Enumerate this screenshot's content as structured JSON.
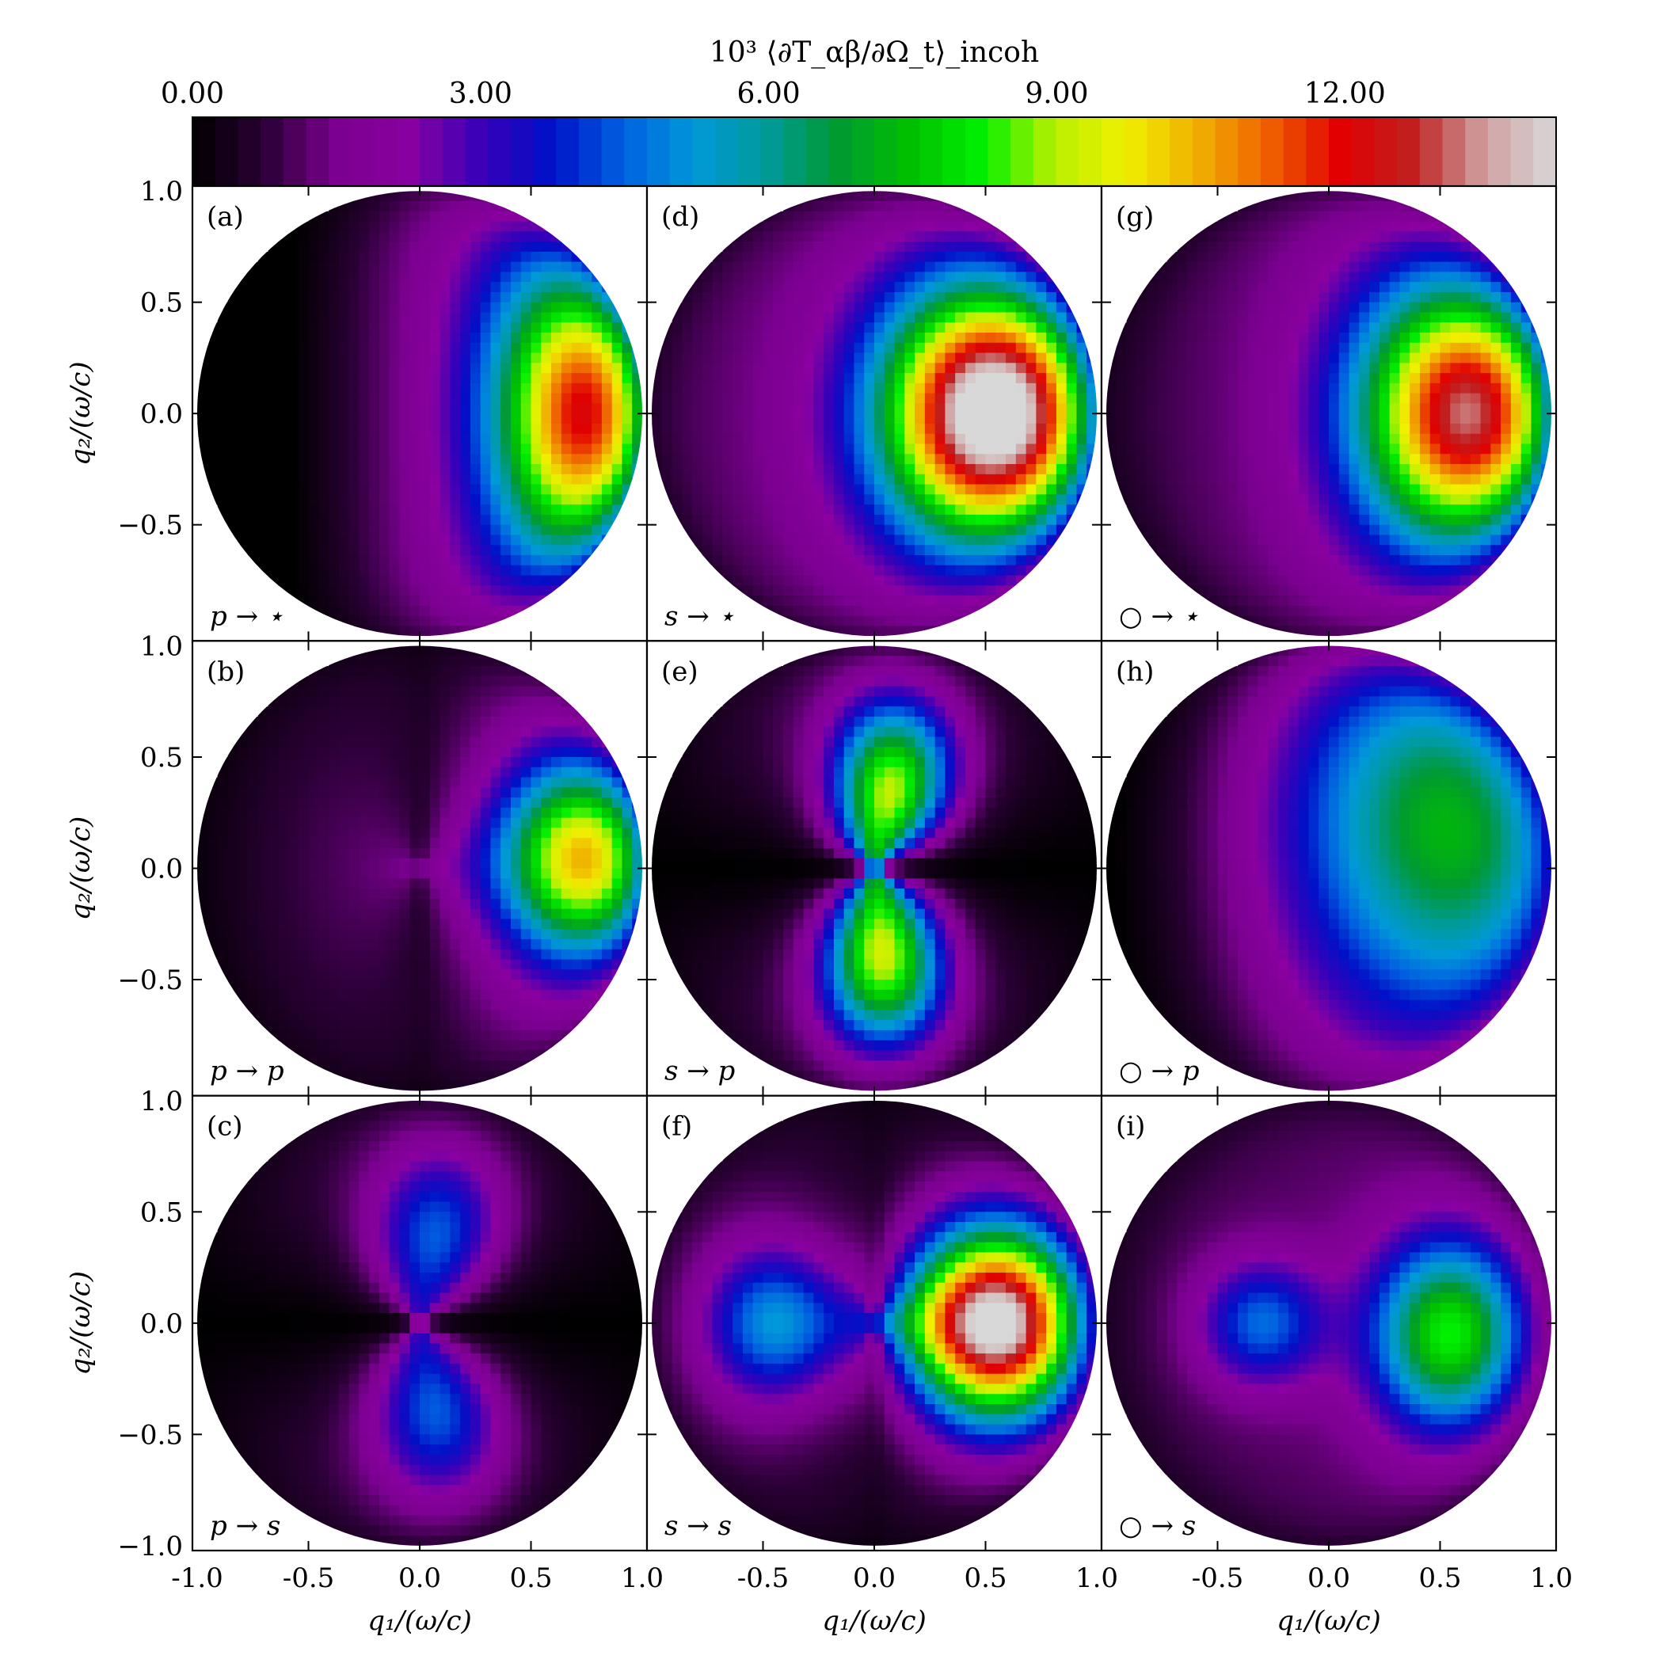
{
  "chart_data": {
    "type": "heatmap",
    "grid": {
      "rows": 3,
      "cols": 3
    },
    "colorbar": {
      "title": "10³ ⟨∂T_αβ/∂Ω_t⟩_incoh",
      "ticks": [
        "0.00",
        "3.00",
        "6.00",
        "9.00",
        "12.00"
      ],
      "tick_values": [
        0,
        3,
        6,
        9,
        12
      ],
      "range": [
        0,
        14.2
      ],
      "colormap": [
        "#000000",
        "#2a0035",
        "#7a0090",
        "#8a00a0",
        "#3a00b8",
        "#0010c8",
        "#0060e0",
        "#0099d8",
        "#009a9a",
        "#009a30",
        "#00c000",
        "#00f000",
        "#b8f000",
        "#f0f000",
        "#f0b000",
        "#f06000",
        "#e00000",
        "#c02020",
        "#d0a0a0",
        "#d8d8d8"
      ]
    },
    "x_axis": {
      "label": "q₁/(ω/c)",
      "range": [
        -1.0,
        1.0
      ],
      "ticks": [
        -1.0,
        -0.5,
        0.0,
        0.5,
        1.0
      ],
      "tick_labels_left": [
        "-1.0",
        "-0.5",
        "0.0",
        "0.5",
        "1.0"
      ],
      "tick_labels_other": [
        "-0.5",
        "0.0",
        "0.5",
        "1.0"
      ]
    },
    "y_axis": {
      "label": "q₂/(ω/c)",
      "range": [
        -1.0,
        1.0
      ],
      "ticks": [
        1.0,
        0.5,
        0.0,
        -0.5,
        -1.0
      ],
      "tick_labels_top": [
        "1.0",
        "0.5",
        "0.0",
        "−0.5",
        "−1.0"
      ],
      "tick_labels_other": [
        "1.0",
        "0.5",
        "0.0",
        "−0.5"
      ]
    },
    "panels": [
      {
        "id": "a",
        "label": "(a)",
        "transition": "p → ⋆",
        "lobes": [
          {
            "x": 0.78,
            "y": 0.0,
            "peak": 9.5,
            "sx": 0.3,
            "sy": 0.48
          }
        ],
        "base": 1.6,
        "xgrad": 2.8,
        "zero_axis": "none"
      },
      {
        "id": "b",
        "label": "(b)",
        "transition": "p → p",
        "lobes": [
          {
            "x": 0.78,
            "y": 0.05,
            "peak": 9.0,
            "sx": 0.28,
            "sy": 0.32
          }
        ],
        "base": 1.5,
        "xgrad": 1.2,
        "zero_axis": "y"
      },
      {
        "id": "c",
        "label": "(c)",
        "transition": "p → s",
        "lobes": [
          {
            "x": 0.1,
            "y": 0.4,
            "peak": 3.5,
            "sx": 0.22,
            "sy": 0.28
          },
          {
            "x": 0.1,
            "y": -0.4,
            "peak": 3.5,
            "sx": 0.22,
            "sy": 0.28
          }
        ],
        "base": 1.0,
        "xgrad": 0.0,
        "zero_axis": "x"
      },
      {
        "id": "d",
        "label": "(d)",
        "transition": "s → ⋆",
        "lobes": [
          {
            "x": 0.55,
            "y": 0.0,
            "peak": 14.0,
            "sx": 0.36,
            "sy": 0.4
          }
        ],
        "base": 1.6,
        "xgrad": 0.5,
        "zero_axis": "none"
      },
      {
        "id": "e",
        "label": "(e)",
        "transition": "s → p",
        "lobes": [
          {
            "x": 0.1,
            "y": 0.35,
            "peak": 8.0,
            "sx": 0.2,
            "sy": 0.28
          },
          {
            "x": 0.05,
            "y": -0.4,
            "peak": 8.0,
            "sx": 0.2,
            "sy": 0.28
          }
        ],
        "base": 1.2,
        "xgrad": 0.0,
        "zero_axis": "x"
      },
      {
        "id": "f",
        "label": "(f)",
        "transition": "s → s",
        "lobes": [
          {
            "x": 0.55,
            "y": 0.0,
            "peak": 14.0,
            "sx": 0.3,
            "sy": 0.32
          },
          {
            "x": -0.45,
            "y": 0.0,
            "peak": 4.0,
            "sx": 0.22,
            "sy": 0.25
          }
        ],
        "base": 1.2,
        "xgrad": 0.0,
        "zero_axis": "y"
      },
      {
        "id": "g",
        "label": "(g)",
        "transition": "○ → ⋆",
        "lobes": [
          {
            "x": 0.65,
            "y": 0.0,
            "peak": 11.5,
            "sx": 0.36,
            "sy": 0.42
          }
        ],
        "base": 1.6,
        "xgrad": 0.8,
        "zero_axis": "none"
      },
      {
        "id": "h",
        "label": "(h)",
        "transition": "○ → p",
        "lobes": [
          {
            "x": 0.5,
            "y": 0.2,
            "peak": 5.0,
            "sx": 0.5,
            "sy": 0.6
          }
        ],
        "base": 1.5,
        "xgrad": 1.6,
        "zero_axis": "none"
      },
      {
        "id": "i",
        "label": "(i)",
        "transition": "○ → s",
        "lobes": [
          {
            "x": 0.55,
            "y": -0.05,
            "peak": 7.0,
            "sx": 0.25,
            "sy": 0.3
          },
          {
            "x": -0.3,
            "y": 0.0,
            "peak": 3.5,
            "sx": 0.2,
            "sy": 0.2
          }
        ],
        "base": 1.2,
        "xgrad": 0.3,
        "zero_axis": "none"
      }
    ]
  }
}
